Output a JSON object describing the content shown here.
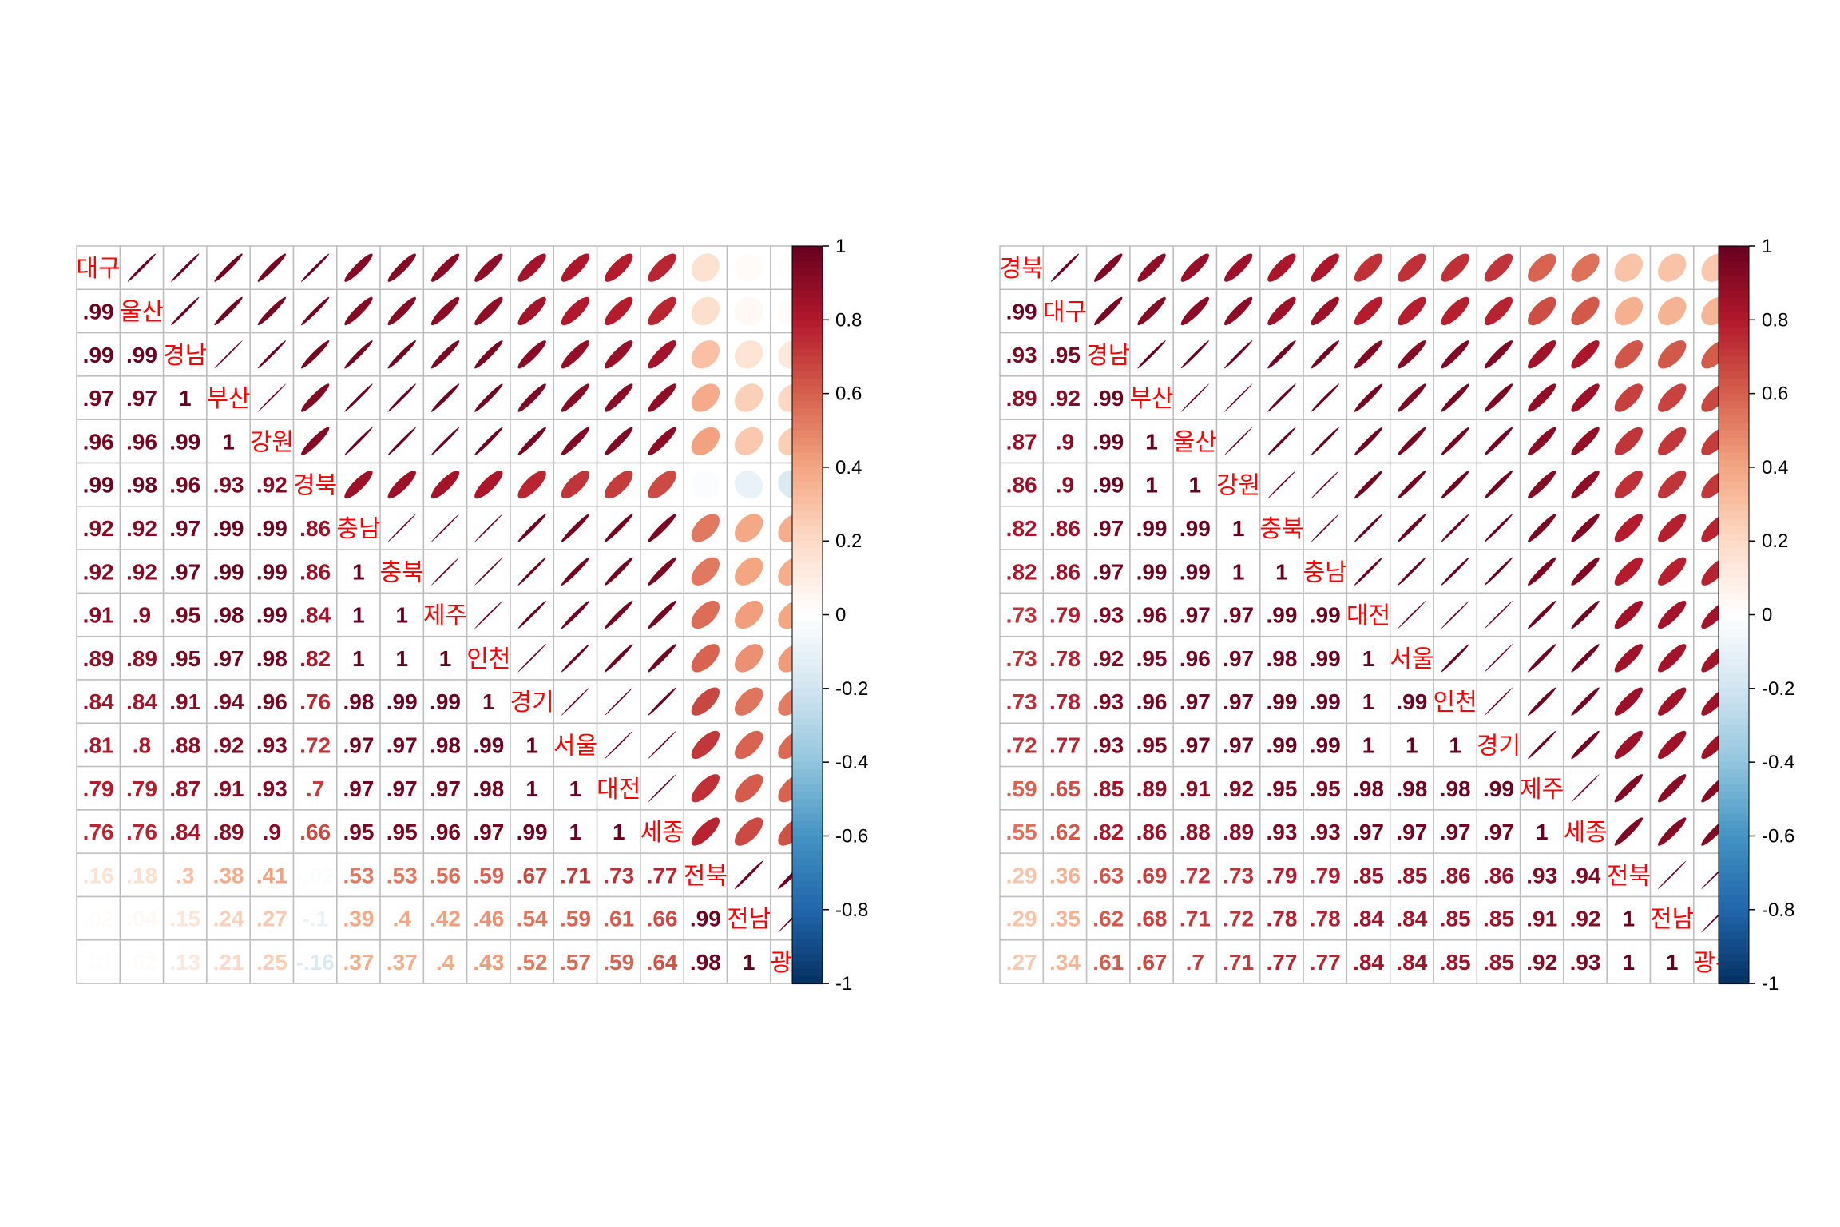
{
  "colors": {
    "scale": [
      "#67001F",
      "#B2182B",
      "#D6604D",
      "#F4A582",
      "#FDDBC7",
      "#FFFFFF",
      "#D1E5F0",
      "#92C5DE",
      "#4393C3",
      "#2166AC",
      "#053061"
    ],
    "label": "#FF0000",
    "grid": "#BEBEBE"
  },
  "chart_data": [
    {
      "type": "heatmap",
      "method": "ellipse (upper) / number (lower)",
      "labels": [
        "대구",
        "울산",
        "경남",
        "부산",
        "강원",
        "경북",
        "충남",
        "충북",
        "제주",
        "인천",
        "경기",
        "서울",
        "대전",
        "세종",
        "전북",
        "전남",
        "광주"
      ],
      "lower": [
        [],
        [
          0.99
        ],
        [
          0.99,
          0.99
        ],
        [
          0.97,
          0.97,
          1
        ],
        [
          0.96,
          0.96,
          0.99,
          1
        ],
        [
          0.99,
          0.98,
          0.96,
          0.93,
          0.92
        ],
        [
          0.92,
          0.92,
          0.97,
          0.99,
          0.99,
          0.86
        ],
        [
          0.92,
          0.92,
          0.97,
          0.99,
          0.99,
          0.86,
          1
        ],
        [
          0.91,
          0.9,
          0.95,
          0.98,
          0.99,
          0.84,
          1,
          1
        ],
        [
          0.89,
          0.89,
          0.95,
          0.97,
          0.98,
          0.82,
          1,
          1,
          1
        ],
        [
          0.84,
          0.84,
          0.91,
          0.94,
          0.96,
          0.76,
          0.98,
          0.99,
          0.99,
          1
        ],
        [
          0.81,
          0.8,
          0.88,
          0.92,
          0.93,
          0.72,
          0.97,
          0.97,
          0.98,
          0.99,
          1
        ],
        [
          0.79,
          0.79,
          0.87,
          0.91,
          0.93,
          0.7,
          0.97,
          0.97,
          0.97,
          0.98,
          1,
          1
        ],
        [
          0.76,
          0.76,
          0.84,
          0.89,
          0.9,
          0.66,
          0.95,
          0.95,
          0.96,
          0.97,
          0.99,
          1,
          1
        ],
        [
          0.16,
          0.18,
          0.3,
          0.38,
          0.41,
          -0.02,
          0.53,
          0.53,
          0.56,
          0.59,
          0.67,
          0.71,
          0.73,
          0.77
        ],
        [
          0.02,
          0.04,
          0.15,
          0.24,
          0.27,
          -0.1,
          0.39,
          0.4,
          0.42,
          0.46,
          0.54,
          0.59,
          0.61,
          0.66,
          0.99
        ],
        [
          0.01,
          0.02,
          0.13,
          0.21,
          0.25,
          -0.16,
          0.37,
          0.37,
          0.4,
          0.43,
          0.52,
          0.57,
          0.59,
          0.64,
          0.98,
          1
        ]
      ],
      "colorbar": {
        "ticks": [
          "1",
          "0.8",
          "0.6",
          "0.4",
          "0.2",
          "0",
          "-0.2",
          "-0.4",
          "-0.6",
          "-0.8",
          "-1"
        ],
        "range": [
          -1,
          1
        ]
      }
    },
    {
      "type": "heatmap",
      "method": "ellipse (upper) / number (lower)",
      "labels": [
        "경북",
        "대구",
        "경남",
        "부산",
        "울산",
        "강원",
        "충북",
        "충남",
        "대전",
        "서울",
        "인천",
        "경기",
        "제주",
        "세종",
        "전북",
        "전남",
        "광주"
      ],
      "lower": [
        [],
        [
          0.99
        ],
        [
          0.93,
          0.95
        ],
        [
          0.89,
          0.92,
          0.99
        ],
        [
          0.87,
          0.9,
          0.99,
          1
        ],
        [
          0.86,
          0.9,
          0.99,
          1,
          1
        ],
        [
          0.82,
          0.86,
          0.97,
          0.99,
          0.99,
          1
        ],
        [
          0.82,
          0.86,
          0.97,
          0.99,
          0.99,
          1,
          1
        ],
        [
          0.73,
          0.79,
          0.93,
          0.96,
          0.97,
          0.97,
          0.99,
          0.99
        ],
        [
          0.73,
          0.78,
          0.92,
          0.95,
          0.96,
          0.97,
          0.98,
          0.99,
          1
        ],
        [
          0.73,
          0.78,
          0.93,
          0.96,
          0.97,
          0.97,
          0.99,
          0.99,
          1,
          0.99
        ],
        [
          0.72,
          0.77,
          0.93,
          0.95,
          0.97,
          0.97,
          0.99,
          0.99,
          1,
          1,
          1
        ],
        [
          0.59,
          0.65,
          0.85,
          0.89,
          0.91,
          0.92,
          0.95,
          0.95,
          0.98,
          0.98,
          0.98,
          0.99
        ],
        [
          0.55,
          0.62,
          0.82,
          0.86,
          0.88,
          0.89,
          0.93,
          0.93,
          0.97,
          0.97,
          0.97,
          0.97,
          1
        ],
        [
          0.29,
          0.36,
          0.63,
          0.69,
          0.72,
          0.73,
          0.79,
          0.79,
          0.85,
          0.85,
          0.86,
          0.86,
          0.93,
          0.94
        ],
        [
          0.29,
          0.35,
          0.62,
          0.68,
          0.71,
          0.72,
          0.78,
          0.78,
          0.84,
          0.84,
          0.85,
          0.85,
          0.91,
          0.92,
          1
        ],
        [
          0.27,
          0.34,
          0.61,
          0.67,
          0.7,
          0.71,
          0.77,
          0.77,
          0.84,
          0.84,
          0.85,
          0.85,
          0.92,
          0.93,
          1,
          1
        ]
      ],
      "colorbar": {
        "ticks": [
          "1",
          "0.8",
          "0.6",
          "0.4",
          "0.2",
          "0",
          "-0.2",
          "-0.4",
          "-0.6",
          "-0.8",
          "-1"
        ],
        "range": [
          -1,
          1
        ]
      }
    }
  ]
}
